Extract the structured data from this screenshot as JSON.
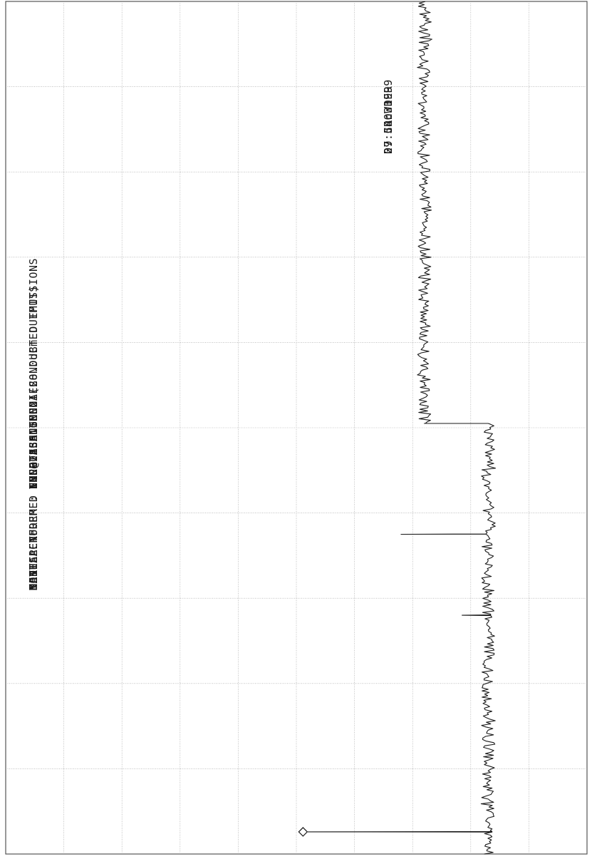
{
  "header": {
    "rows": [
      {
        "label": "MANUFACTURER",
        "sep": ":",
        "value": "TRL TECHNOLOGIES"
      },
      {
        "label": "MODEL",
        "sep": ":",
        "value": "SYN8015A"
      },
      {
        "label": "SERIAL No.",
        "sep": ":",
        "value": "NONE ASSIGNED"
      },
      {
        "label": "TEST PERFORMED",
        "sep": ":",
        "value": "FCC-22 ANTENNA CONDUCTED EMISSIONS"
      },
      {
        "label": "MODE",
        "sep": ":",
        "value": "FM @ 836.5MHz (28.0dBm OUTPUT)"
      },
      {
        "label": "NOTES",
        "sep": ":",
        "value": "INPUT"
      }
    ]
  },
  "stamp": {
    "operator": "D. CROWDER",
    "date": "29 Jun 1999",
    "time": "07:54:33"
  },
  "colors": {
    "trace": "#1a1a1a",
    "grid": "#9a9a9a",
    "frame": "#555555"
  },
  "chart_data": {
    "type": "line",
    "orientation": "rotated-90-ccw",
    "grid": true,
    "grid_divisions": {
      "frequency": 10,
      "level": 10
    },
    "x_range_divisions": [
      0,
      10
    ],
    "y_range_divisions": [
      0,
      10
    ],
    "noise_floor_segments": [
      {
        "x_start_div": 0.0,
        "x_end_div": 5.05,
        "level_div": 1.7
      },
      {
        "x_start_div": 5.05,
        "x_end_div": 10.0,
        "level_div": 2.8
      }
    ],
    "spikes": [
      {
        "name": "carrier-marker",
        "x_div": 0.26,
        "level_div": 4.8,
        "marker": "diamond"
      },
      {
        "name": "spike-2",
        "x_div": 3.75,
        "level_div": 3.2
      },
      {
        "name": "spike-3",
        "x_div": 2.8,
        "level_div": 2.15
      }
    ]
  }
}
